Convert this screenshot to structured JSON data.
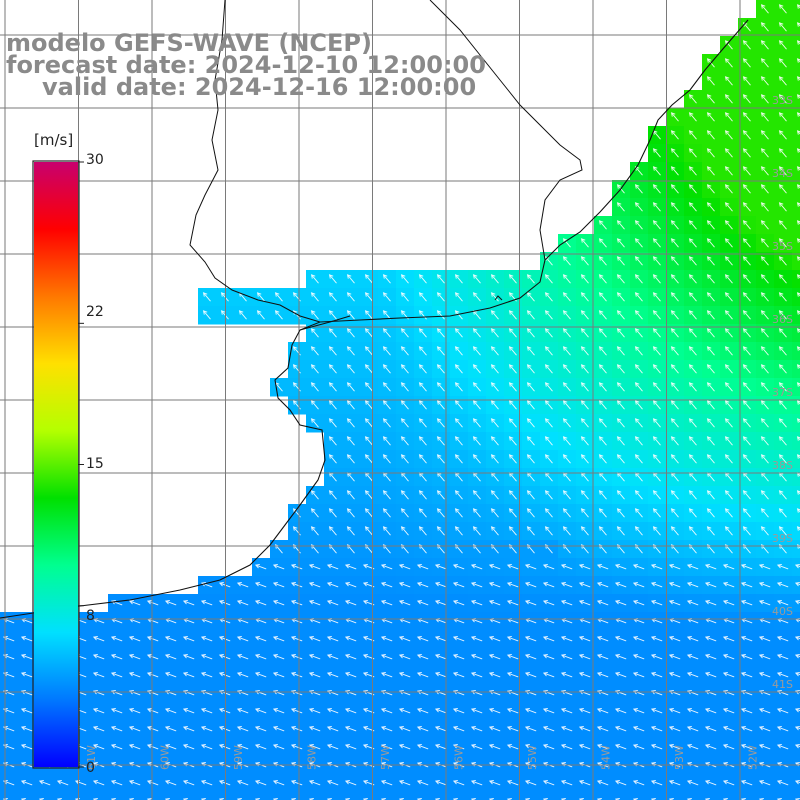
{
  "header": {
    "model_line": "modelo GEFS-WAVE (NCEP)",
    "forecast_line": "forecast date: 2024-12-10 12:00:00",
    "valid_line": "valid date: 2024-12-16 12:00:00"
  },
  "colorbar": {
    "unit": "[m/s]",
    "min": 0,
    "max": 30,
    "tick_labels": [
      "30",
      "22",
      "15",
      "8",
      "0"
    ],
    "tick_values": [
      30,
      22,
      15,
      8,
      0
    ],
    "colors": [
      "#0000ff",
      "#0078ff",
      "#00e0ff",
      "#00ff90",
      "#00e000",
      "#b4ff00",
      "#ffe000",
      "#ff7800",
      "#ff0000",
      "#c8006e"
    ]
  },
  "grid": {
    "lat_labels": [
      "33S",
      "34S",
      "35S",
      "36S",
      "37S",
      "38S",
      "39S",
      "40S",
      "41S"
    ],
    "lon_labels": [
      "61W",
      "60W",
      "59W",
      "58W",
      "57W",
      "56W",
      "55W",
      "54W",
      "53W",
      "52W"
    ]
  },
  "wind_field": {
    "description_values": "surface wind speed in m/s shown by cell colour; arrows show direction",
    "speed_north_east": 11,
    "speed_far_northeast": 13,
    "speed_east_central": 8,
    "speed_central": 6,
    "speed_south": 4,
    "prevailing_direction": "from southeast/east (arrows pointing northwest/west)"
  }
}
